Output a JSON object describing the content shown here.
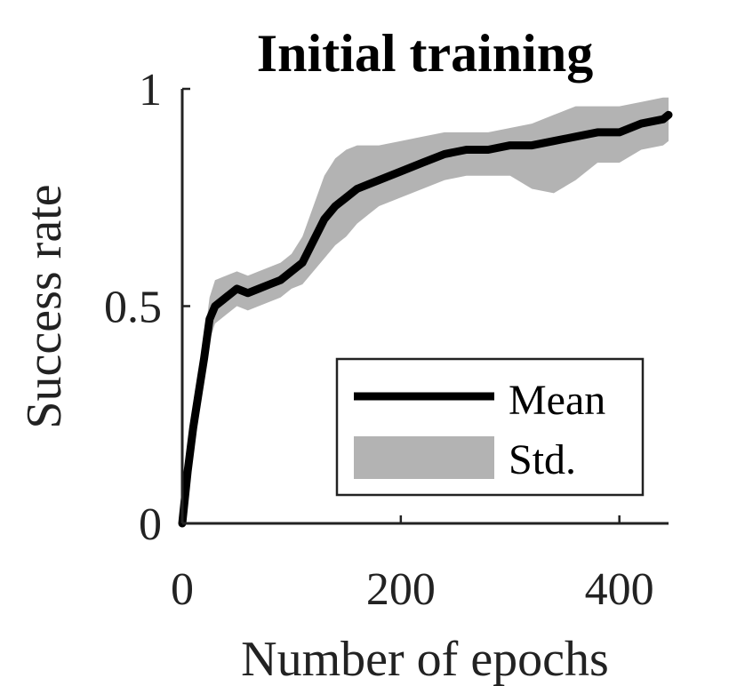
{
  "chart_data": {
    "type": "line",
    "title": "Initial training",
    "xlabel": "Number of epochs",
    "ylabel": "Success rate",
    "xlim": [
      0,
      445
    ],
    "ylim": [
      0,
      1
    ],
    "x_ticks": [
      0,
      200,
      400
    ],
    "x_tick_labels": [
      "0",
      "200",
      "400"
    ],
    "y_ticks": [
      0,
      0.5,
      1
    ],
    "y_tick_labels": [
      "0",
      "0.5",
      "1"
    ],
    "grid": false,
    "legend_position": "bottom-right",
    "series": [
      {
        "name": "Mean",
        "kind": "line",
        "color": "#000000",
        "x": [
          0,
          5,
          10,
          15,
          20,
          25,
          30,
          40,
          50,
          60,
          70,
          80,
          90,
          100,
          110,
          120,
          130,
          140,
          150,
          160,
          170,
          180,
          200,
          220,
          240,
          260,
          280,
          300,
          320,
          340,
          360,
          380,
          400,
          420,
          440,
          445
        ],
        "y": [
          0,
          0.12,
          0.22,
          0.3,
          0.38,
          0.47,
          0.5,
          0.52,
          0.54,
          0.53,
          0.54,
          0.55,
          0.56,
          0.58,
          0.6,
          0.65,
          0.7,
          0.73,
          0.75,
          0.77,
          0.78,
          0.79,
          0.81,
          0.83,
          0.85,
          0.86,
          0.86,
          0.87,
          0.87,
          0.88,
          0.89,
          0.9,
          0.9,
          0.92,
          0.93,
          0.94
        ]
      },
      {
        "name": "Std.",
        "kind": "band",
        "color": "#b3b3b3",
        "x": [
          0,
          5,
          10,
          15,
          20,
          25,
          30,
          40,
          50,
          60,
          70,
          80,
          90,
          100,
          110,
          120,
          130,
          140,
          150,
          160,
          170,
          180,
          200,
          220,
          240,
          260,
          280,
          300,
          320,
          340,
          360,
          380,
          400,
          420,
          440,
          445
        ],
        "upper": [
          0.01,
          0.14,
          0.24,
          0.33,
          0.42,
          0.52,
          0.56,
          0.57,
          0.58,
          0.57,
          0.58,
          0.59,
          0.6,
          0.62,
          0.66,
          0.73,
          0.8,
          0.84,
          0.86,
          0.87,
          0.87,
          0.87,
          0.88,
          0.89,
          0.9,
          0.9,
          0.9,
          0.91,
          0.92,
          0.94,
          0.96,
          0.96,
          0.96,
          0.97,
          0.98,
          0.98
        ],
        "lower": [
          0,
          0.1,
          0.2,
          0.27,
          0.34,
          0.42,
          0.46,
          0.48,
          0.5,
          0.49,
          0.5,
          0.51,
          0.52,
          0.54,
          0.55,
          0.58,
          0.61,
          0.64,
          0.66,
          0.69,
          0.71,
          0.73,
          0.75,
          0.77,
          0.79,
          0.8,
          0.8,
          0.8,
          0.77,
          0.76,
          0.79,
          0.83,
          0.83,
          0.86,
          0.87,
          0.88
        ]
      }
    ]
  }
}
